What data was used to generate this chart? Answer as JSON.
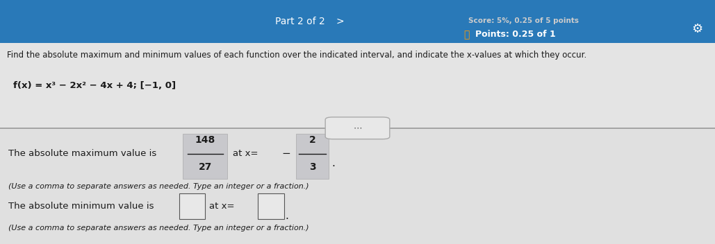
{
  "bg_color_top": "#2979b8",
  "bg_color_content_upper": "#e8e8e8",
  "bg_color_content_lower": "#d8d8d8",
  "title_top": "Part 2 of 2",
  "score_text": "Score: 5%, 0.25 of 5 points",
  "points_text": "Points: 0.25 of 1",
  "instruction": "Find the absolute maximum and minimum values of each function over the indicated interval, and indicate the x-values at which they occur.",
  "function_text": "f(x) = x³ − 2x² − 4x + 4; [−1, 0]",
  "max_label": "The absolute maximum value is",
  "max_frac_num": "148",
  "max_frac_den": "27",
  "max_at": "at x =",
  "max_x_sign": "−",
  "max_x_num": "2",
  "max_x_den": "3",
  "max_note": "(Use a comma to separate answers as needed. Type an integer or a fraction.)",
  "min_label": "The absolute minimum value is",
  "min_at": "at x =",
  "min_note": "(Use a comma to separate answers as needed. Type an integer or a fraction.)",
  "text_color_dark": "#1a1a1a",
  "text_color_light": "#ffffff",
  "text_color_gray": "#cccccc",
  "text_color_blue": "#3399ff",
  "frac_box_bg": "#c8c8cc",
  "empty_box_border": "#555555",
  "divider_color": "#999999",
  "dots_box_border": "#888888",
  "dots_box_bg": "#e0e0e0"
}
